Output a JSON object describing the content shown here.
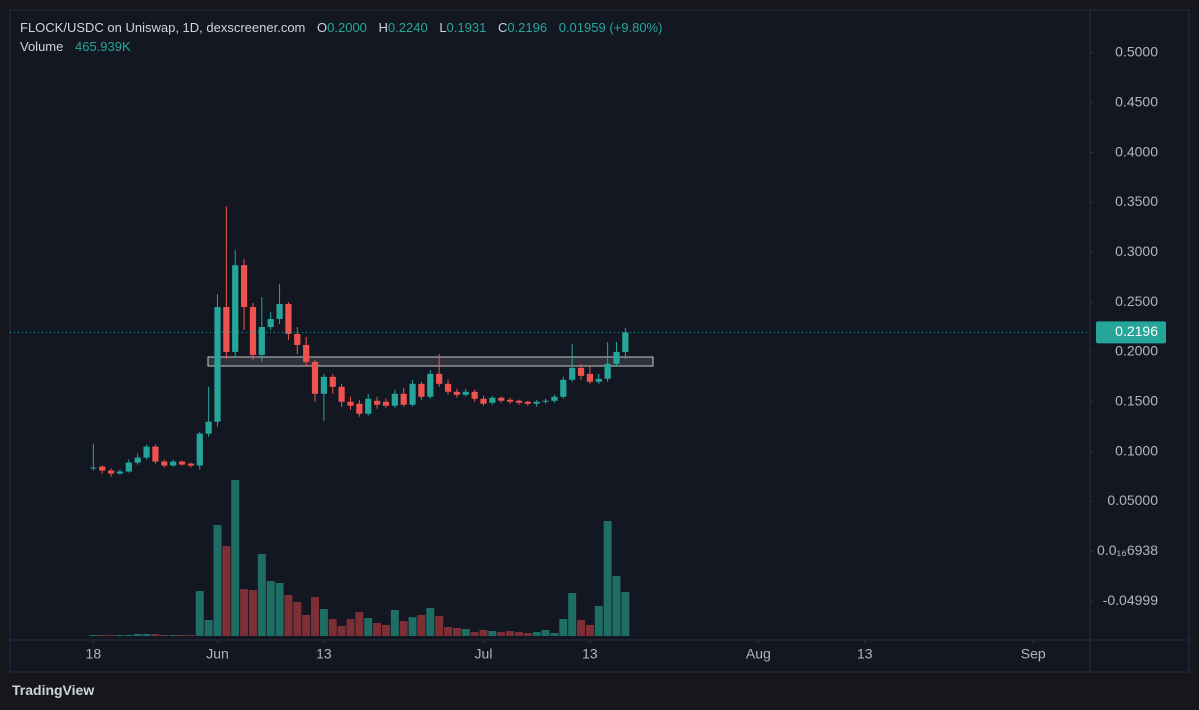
{
  "header": {
    "title": "FLOCK/USDC on Uniswap, 1D, dexscreener.com",
    "o_label": "O",
    "o": "0.2000",
    "h_label": "H",
    "h": "0.2240",
    "l_label": "L",
    "l": "0.1931",
    "c_label": "C",
    "c": "0.2196",
    "change": "0.01959 (+9.80%)",
    "volume_label": "Volume",
    "volume": "465.939K"
  },
  "chart_data": {
    "type": "candlestick",
    "x": [
      0,
      1,
      2,
      3,
      4,
      5,
      6,
      7,
      8,
      9,
      10,
      11,
      12,
      13,
      14,
      15,
      16,
      17,
      18,
      19,
      20,
      21,
      22,
      23,
      24,
      25,
      26,
      27,
      28,
      29,
      30,
      31,
      32,
      33,
      34,
      35,
      36,
      37,
      38,
      39,
      40,
      41,
      42,
      43,
      44,
      45,
      46,
      47,
      48,
      49,
      50,
      51,
      52,
      53,
      54,
      55,
      56,
      57,
      58,
      59,
      60
    ],
    "open": [
      0.083,
      0.085,
      0.081,
      0.078,
      0.08,
      0.089,
      0.094,
      0.105,
      0.09,
      0.086,
      0.09,
      0.088,
      0.086,
      0.118,
      0.13,
      0.245,
      0.2,
      0.287,
      0.245,
      0.197,
      0.225,
      0.233,
      0.248,
      0.218,
      0.207,
      0.19,
      0.158,
      0.175,
      0.165,
      0.15,
      0.148,
      0.138,
      0.151,
      0.15,
      0.146,
      0.158,
      0.147,
      0.168,
      0.155,
      0.178,
      0.168,
      0.16,
      0.157,
      0.16,
      0.153,
      0.149,
      0.154,
      0.152,
      0.151,
      0.15,
      0.148,
      0.15,
      0.151,
      0.155,
      0.172,
      0.184,
      0.178,
      0.17,
      0.173,
      0.188,
      0.2
    ],
    "high": [
      0.108,
      0.086,
      0.083,
      0.082,
      0.092,
      0.098,
      0.107,
      0.107,
      0.092,
      0.092,
      0.091,
      0.089,
      0.12,
      0.165,
      0.258,
      0.346,
      0.302,
      0.293,
      0.249,
      0.255,
      0.24,
      0.268,
      0.25,
      0.225,
      0.215,
      0.192,
      0.178,
      0.178,
      0.168,
      0.155,
      0.152,
      0.158,
      0.155,
      0.153,
      0.162,
      0.164,
      0.172,
      0.17,
      0.182,
      0.198,
      0.172,
      0.163,
      0.163,
      0.162,
      0.156,
      0.156,
      0.155,
      0.154,
      0.152,
      0.151,
      0.152,
      0.153,
      0.157,
      0.175,
      0.208,
      0.188,
      0.185,
      0.178,
      0.21,
      0.21,
      0.224
    ],
    "low": [
      0.081,
      0.078,
      0.075,
      0.077,
      0.079,
      0.087,
      0.092,
      0.088,
      0.084,
      0.085,
      0.086,
      0.084,
      0.082,
      0.115,
      0.125,
      0.193,
      0.195,
      0.222,
      0.192,
      0.19,
      0.222,
      0.228,
      0.212,
      0.198,
      0.185,
      0.15,
      0.131,
      0.158,
      0.145,
      0.142,
      0.135,
      0.136,
      0.143,
      0.144,
      0.144,
      0.145,
      0.145,
      0.152,
      0.153,
      0.165,
      0.157,
      0.154,
      0.155,
      0.15,
      0.146,
      0.147,
      0.149,
      0.148,
      0.147,
      0.146,
      0.145,
      0.148,
      0.149,
      0.153,
      0.17,
      0.172,
      0.168,
      0.168,
      0.17,
      0.185,
      0.1931
    ],
    "close": [
      0.084,
      0.081,
      0.078,
      0.08,
      0.089,
      0.094,
      0.105,
      0.09,
      0.086,
      0.09,
      0.087,
      0.086,
      0.118,
      0.13,
      0.245,
      0.2,
      0.287,
      0.245,
      0.197,
      0.225,
      0.233,
      0.248,
      0.218,
      0.207,
      0.19,
      0.158,
      0.175,
      0.165,
      0.15,
      0.146,
      0.138,
      0.153,
      0.147,
      0.146,
      0.158,
      0.147,
      0.168,
      0.155,
      0.178,
      0.168,
      0.16,
      0.157,
      0.16,
      0.153,
      0.148,
      0.154,
      0.151,
      0.15,
      0.149,
      0.148,
      0.15,
      0.151,
      0.155,
      0.172,
      0.184,
      0.176,
      0.17,
      0.173,
      0.188,
      0.2,
      0.2196
    ],
    "volume": [
      10600,
      10600,
      10600,
      10600,
      10600,
      21200,
      21200,
      21200,
      10600,
      10600,
      10600,
      10600,
      477000,
      170000,
      1177000,
      954000,
      1654000,
      498000,
      488000,
      869000,
      583000,
      562000,
      435000,
      360000,
      223000,
      413000,
      286000,
      180000,
      106000,
      180000,
      254000,
      191000,
      138000,
      117000,
      276000,
      159000,
      201000,
      223000,
      297000,
      212000,
      95000,
      85000,
      74000,
      42000,
      64000,
      53000,
      42000,
      53000,
      42000,
      32000,
      42000,
      64000,
      32000,
      180000,
      456000,
      170000,
      117000,
      318000,
      1219000,
      636000,
      465939
    ],
    "up_color": "#26a69a",
    "down_color": "#ef5350",
    "volume_up_color": "#1f6e66",
    "volume_down_color": "#7e2f36",
    "xlim": [
      -9.4,
      112.4
    ],
    "xticks": [
      {
        "value": 0,
        "label": "18"
      },
      {
        "value": 14,
        "label": "Jun"
      },
      {
        "value": 26,
        "label": "13"
      },
      {
        "value": 44,
        "label": "Jul"
      },
      {
        "value": 56,
        "label": "13"
      },
      {
        "value": 75,
        "label": "Aug"
      },
      {
        "value": 87,
        "label": "13"
      },
      {
        "value": 106,
        "label": "Sep"
      }
    ],
    "ylim": [
      -0.089,
      0.543
    ],
    "yticks": [
      {
        "value": 0.5,
        "label": "0.5000"
      },
      {
        "value": 0.45,
        "label": "0.4500"
      },
      {
        "value": 0.4,
        "label": "0.4000"
      },
      {
        "value": 0.35,
        "label": "0.3500"
      },
      {
        "value": 0.3,
        "label": "0.3000"
      },
      {
        "value": 0.25,
        "label": "0.2500"
      },
      {
        "value": 0.2,
        "label": "0.2000"
      },
      {
        "value": 0.15,
        "label": "0.1500"
      },
      {
        "value": 0.1,
        "label": "0.1000"
      },
      {
        "value": 0.05,
        "label": "0.05000"
      },
      {
        "value": 6.938e-17,
        "label": "0.0₁₆6938"
      },
      -0.04999
    ],
    "grid": false
  },
  "footer": {
    "brand": "TradingView"
  }
}
